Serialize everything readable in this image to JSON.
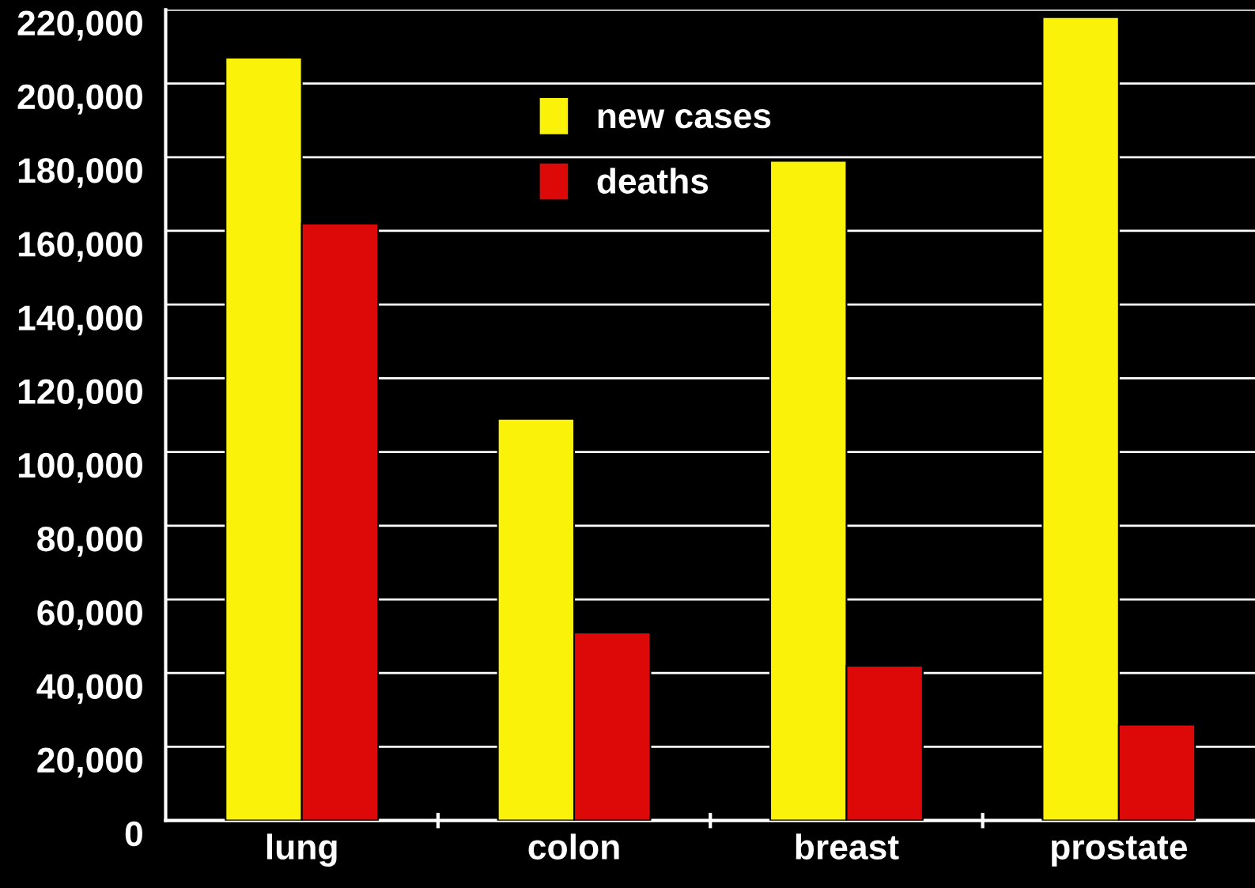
{
  "chart_data": {
    "type": "bar",
    "categories": [
      "lung",
      "colon",
      "breast",
      "prostate"
    ],
    "series": [
      {
        "name": "new cases",
        "color": "#fbf20a",
        "values": [
          207000,
          109000,
          179000,
          218000
        ]
      },
      {
        "name": "deaths",
        "color": "#dd0808",
        "values": [
          162000,
          51000,
          42000,
          26000
        ]
      }
    ],
    "ylim": [
      0,
      220000
    ],
    "yticks": [
      {
        "value": 0,
        "label": "0"
      },
      {
        "value": 20000,
        "label": "20,000"
      },
      {
        "value": 40000,
        "label": "40,000"
      },
      {
        "value": 60000,
        "label": "60,000"
      },
      {
        "value": 80000,
        "label": "80,000"
      },
      {
        "value": 100000,
        "label": "100,000"
      },
      {
        "value": 120000,
        "label": "120,000"
      },
      {
        "value": 140000,
        "label": "140,000"
      },
      {
        "value": 160000,
        "label": "160,000"
      },
      {
        "value": 180000,
        "label": "180,000"
      },
      {
        "value": 200000,
        "label": "200,000"
      },
      {
        "value": 220000,
        "label": "220,000"
      }
    ],
    "grid": "y",
    "legend": "top"
  }
}
